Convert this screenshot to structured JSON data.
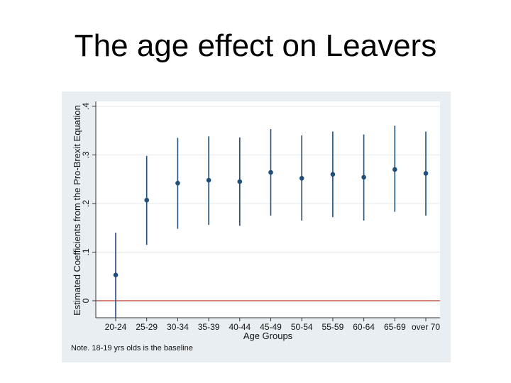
{
  "slide": {
    "title": "The age effect on Leavers"
  },
  "chart_data": {
    "type": "scatter",
    "subtype": "coefficient-plot-with-confidence-intervals",
    "title": "",
    "xlabel": "Age Groups",
    "ylabel": "Estimated Coefficients from the Pro-Brexit Equation",
    "categories": [
      "20-24",
      "25-29",
      "30-34",
      "35-39",
      "40-44",
      "45-49",
      "50-54",
      "55-59",
      "60-64",
      "65-69",
      "over 70"
    ],
    "estimates": [
      0.053,
      0.207,
      0.242,
      0.248,
      0.245,
      0.264,
      0.252,
      0.26,
      0.254,
      0.27,
      0.262
    ],
    "ci_lower": [
      -0.035,
      0.115,
      0.148,
      0.156,
      0.154,
      0.175,
      0.165,
      0.172,
      0.165,
      0.183,
      0.175
    ],
    "ci_upper": [
      0.14,
      0.298,
      0.335,
      0.338,
      0.336,
      0.353,
      0.34,
      0.348,
      0.342,
      0.36,
      0.348
    ],
    "yticks": [
      "0",
      ".1",
      ".2",
      ".3",
      ".4"
    ],
    "ytick_values": [
      0,
      0.1,
      0.2,
      0.3,
      0.4
    ],
    "ylim": [
      -0.035,
      0.41
    ],
    "reference_line": 0,
    "grid": true,
    "note": "Note. 18-19 yrs olds is the  baseline",
    "colors": {
      "marker": "#1f4e79",
      "reference": "#c0392b",
      "panel": "#e9eef2",
      "plot": "#ffffff",
      "grid": "#e4e9ee",
      "axis": "#333333"
    }
  }
}
